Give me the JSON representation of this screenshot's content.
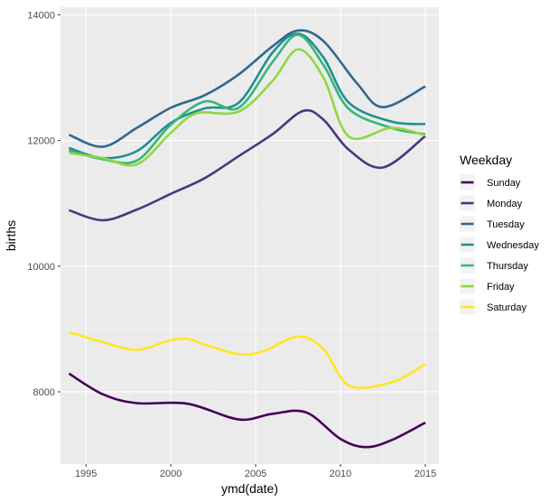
{
  "chart_data": {
    "type": "line",
    "xlabel": "ymd(date)",
    "ylabel": "births",
    "xlim": [
      1993.5,
      2015.8
    ],
    "ylim": [
      6850,
      14120
    ],
    "x_ticks": [
      1995,
      2000,
      2005,
      2010,
      2015
    ],
    "y_ticks": [
      8000,
      10000,
      12000,
      14000
    ],
    "x_tick_labels": [
      "1995",
      "2000",
      "2005",
      "2010",
      "2015"
    ],
    "y_tick_labels": [
      "8000",
      "10000",
      "12000",
      "14000"
    ],
    "grid": true,
    "legend_title": "Weekday",
    "legend_position": "right",
    "colors": {
      "panel_bg": "#ebebeb",
      "grid_major": "#ffffff",
      "grid_minor": "#f5f5f5"
    },
    "series": [
      {
        "name": "Sunday",
        "color": "#440154",
        "x": [
          1994,
          1996,
          1998,
          2001,
          2004,
          2006,
          2008,
          2010,
          2011.5,
          2013,
          2015
        ],
        "y": [
          8290,
          7960,
          7820,
          7810,
          7560,
          7650,
          7670,
          7250,
          7120,
          7230,
          7510
        ]
      },
      {
        "name": "Monday",
        "color": "#443a83",
        "x": [
          1994,
          1996,
          1998,
          2000,
          2002,
          2004,
          2006,
          2007.8,
          2009,
          2010.5,
          2012.5,
          2015
        ],
        "y": [
          10890,
          10730,
          10900,
          11150,
          11400,
          11750,
          12100,
          12470,
          12330,
          11850,
          11570,
          12070
        ]
      },
      {
        "name": "Tuesday",
        "color": "#31688e",
        "x": [
          1994,
          1996,
          1998,
          2000,
          2002,
          2004,
          2006,
          2007.5,
          2009,
          2011,
          2012.5,
          2015
        ],
        "y": [
          12090,
          11900,
          12200,
          12520,
          12720,
          13050,
          13500,
          13750,
          13580,
          12900,
          12530,
          12860
        ]
      },
      {
        "name": "Wednesday",
        "color": "#21908d",
        "x": [
          1994,
          1996,
          1998,
          2000,
          2002,
          2004,
          2006,
          2007.5,
          2009,
          2010.5,
          2013,
          2015
        ],
        "y": [
          11880,
          11720,
          11830,
          12280,
          12510,
          12600,
          13400,
          13700,
          13320,
          12600,
          12300,
          12260
        ]
      },
      {
        "name": "Thursday",
        "color": "#35b779",
        "x": [
          1994,
          1996,
          1998,
          2000,
          2002,
          2004,
          2006,
          2007.5,
          2009,
          2010.5,
          2013,
          2015
        ],
        "y": [
          11840,
          11700,
          11680,
          12250,
          12620,
          12520,
          13250,
          13680,
          13200,
          12500,
          12200,
          12100
        ]
      },
      {
        "name": "Friday",
        "color": "#8fd744",
        "x": [
          1994,
          1996,
          1998,
          2000,
          2001.5,
          2004,
          2006,
          2007.5,
          2009,
          2010.5,
          2013,
          2015
        ],
        "y": [
          11800,
          11720,
          11620,
          12120,
          12430,
          12460,
          12950,
          13450,
          13000,
          12060,
          12200,
          12080
        ]
      },
      {
        "name": "Saturday",
        "color": "#fde725",
        "x": [
          1994,
          1996,
          1998,
          2000,
          2001,
          2002,
          2004,
          2005.5,
          2007.5,
          2009,
          2010.5,
          2013,
          2015
        ],
        "y": [
          8950,
          8790,
          8670,
          8820,
          8840,
          8750,
          8600,
          8650,
          8880,
          8680,
          8100,
          8150,
          8440
        ]
      }
    ]
  }
}
